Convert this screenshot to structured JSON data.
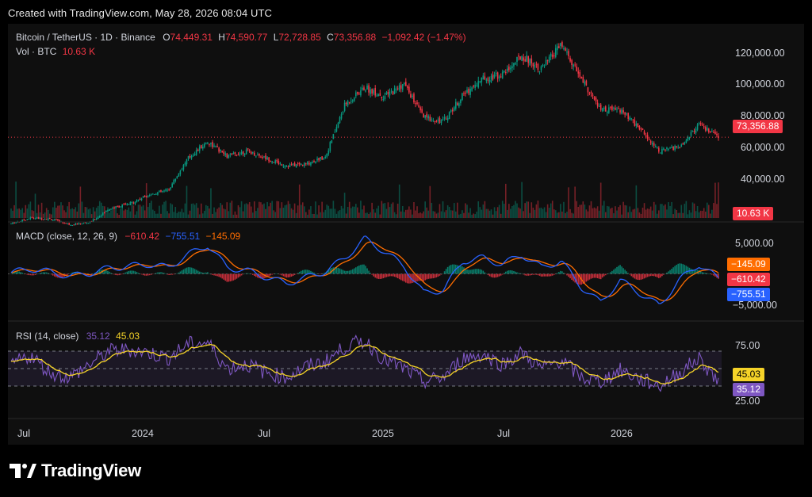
{
  "header": {
    "created": "Created with TradingView.com, May 28, 2026 08:04 UTC"
  },
  "price_pane": {
    "symbol": "Bitcoin / TetherUS · 1D · Binance",
    "o_label": "O",
    "o_value": "74,449.31",
    "h_label": "H",
    "h_value": "74,590.77",
    "l_label": "L",
    "l_value": "72,728.85",
    "c_label": "C",
    "c_value": "73,356.88",
    "change": "−1,092.42 (−1.47%)",
    "vol_label": "Vol · BTC",
    "vol_value": "10.63 K",
    "last_price_badge": "73,356.88",
    "vol_badge": "10.63 K",
    "y_ticks": [
      "120,000.00",
      "100,000.00",
      "80,000.00",
      "60,000.00",
      "40,000.00"
    ]
  },
  "macd_pane": {
    "label": "MACD (close, 12, 26, 9)",
    "hist": "−610.42",
    "macd": "−755.51",
    "signal": "−145.09",
    "y_ticks": [
      "5,000.00",
      "−5,000.00"
    ],
    "badges": [
      "−145.09",
      "−610.42",
      "−755.51"
    ]
  },
  "rsi_pane": {
    "label": "RSI (14, close)",
    "rsi": "35.12",
    "rsi_ma": "45.03",
    "y_ticks": [
      "75.00",
      "25.00"
    ],
    "badges": [
      "45.03",
      "35.12"
    ]
  },
  "x_axis": [
    "Jul",
    "2024",
    "Jul",
    "2025",
    "Jul",
    "2026"
  ],
  "logo": {
    "text": "TradingView"
  },
  "colors": {
    "up": "#089981",
    "down": "#f23645",
    "macd": "#2962ff",
    "signal": "#ff6d00",
    "rsi": "#7e57c2",
    "rsi_ma": "#f5d328",
    "background": "#0f0f0f"
  },
  "chart_data": {
    "type": "line",
    "title": "Bitcoin / TetherUS · 1D · Binance",
    "x_range": [
      "2023-06",
      "2026-05"
    ],
    "x_ticks": [
      "Jul",
      "2024",
      "Jul",
      "2025",
      "Jul",
      "2026"
    ],
    "price": {
      "ylim": [
        30000,
        130000
      ],
      "last": 73356.88,
      "ohlc_last": {
        "open": 74449.31,
        "high": 74590.77,
        "low": 72728.85,
        "close": 73356.88
      },
      "x": [
        "2023-06-01",
        "2023-07-01",
        "2023-08-01",
        "2023-09-01",
        "2023-10-01",
        "2023-11-01",
        "2023-12-01",
        "2024-01-01",
        "2024-02-01",
        "2024-03-01",
        "2024-04-01",
        "2024-05-01",
        "2024-06-01",
        "2024-07-01",
        "2024-08-01",
        "2024-09-01",
        "2024-10-01",
        "2024-11-01",
        "2024-12-01",
        "2025-01-01",
        "2025-02-01",
        "2025-03-01",
        "2025-04-01",
        "2025-05-01",
        "2025-06-01",
        "2025-07-01",
        "2025-08-01",
        "2025-09-01",
        "2025-10-01",
        "2025-11-01",
        "2025-12-01",
        "2026-01-01",
        "2026-02-01",
        "2026-03-01",
        "2026-04-01",
        "2026-05-01",
        "2026-05-28"
      ],
      "close": [
        27000,
        30000,
        29500,
        26500,
        27500,
        35000,
        37500,
        42500,
        45000,
        62000,
        71000,
        63000,
        66000,
        62000,
        58000,
        59000,
        63000,
        91000,
        100000,
        95000,
        102000,
        84000,
        82000,
        96000,
        105000,
        107000,
        117000,
        110000,
        123000,
        105000,
        88000,
        88000,
        78000,
        66000,
        68000,
        80000,
        73356.88
      ]
    },
    "volume": {
      "last": "10.63 K"
    },
    "macd": {
      "params": "close, 12, 26, 9",
      "ylim": [
        -7000,
        7500
      ],
      "macd_last": -755.51,
      "signal_last": -145.09,
      "hist_last": -610.42,
      "values": [
        200,
        800,
        300,
        -400,
        100,
        900,
        1200,
        1500,
        1000,
        3000,
        4500,
        1000,
        500,
        -500,
        -1500,
        -600,
        400,
        2500,
        5500,
        3500,
        1200,
        -3000,
        -2500,
        2000,
        2500,
        1500,
        3000,
        1000,
        2000,
        -2000,
        -4500,
        -1000,
        -3000,
        -5000,
        -1000,
        1500,
        -755.51
      ]
    },
    "rsi": {
      "params": "14, close",
      "ylim": [
        0,
        100
      ],
      "bands": [
        30,
        70
      ],
      "rsi_last": 35.12,
      "ma_last": 45.03,
      "values": [
        55,
        65,
        45,
        40,
        55,
        70,
        72,
        68,
        62,
        78,
        80,
        50,
        55,
        45,
        40,
        52,
        58,
        75,
        82,
        60,
        50,
        35,
        40,
        62,
        66,
        55,
        68,
        50,
        60,
        40,
        35,
        48,
        38,
        30,
        45,
        62,
        35.12
      ]
    }
  }
}
